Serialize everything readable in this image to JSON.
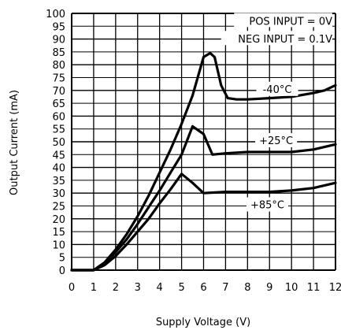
{
  "chart_data": {
    "type": "line",
    "xlabel": "Supply Voltage (V)",
    "ylabel": "Output Current (mA)",
    "xlim": [
      0,
      12
    ],
    "ylim": [
      0,
      100
    ],
    "x_ticks": [
      "0",
      "1",
      "2",
      "3",
      "4",
      "5",
      "6",
      "7",
      "8",
      "9",
      "10",
      "11",
      "12"
    ],
    "y_ticks": [
      "0",
      "5",
      "10",
      "15",
      "20",
      "25",
      "30",
      "35",
      "40",
      "45",
      "50",
      "55",
      "60",
      "65",
      "70",
      "75",
      "80",
      "85",
      "90",
      "95",
      "100"
    ],
    "grid": "major",
    "annotations": [
      "POS INPUT = 0V",
      "NEG INPUT = 0.1V"
    ],
    "series": [
      {
        "name": "-40°C",
        "points": [
          [
            0,
            0
          ],
          [
            1,
            0
          ],
          [
            1.5,
            3
          ],
          [
            2,
            8
          ],
          [
            2.5,
            14
          ],
          [
            3,
            21
          ],
          [
            3.5,
            29
          ],
          [
            4,
            38
          ],
          [
            4.5,
            47
          ],
          [
            5,
            57
          ],
          [
            5.5,
            68
          ],
          [
            6,
            83
          ],
          [
            6.3,
            84.5
          ],
          [
            6.5,
            83
          ],
          [
            6.8,
            72
          ],
          [
            7.1,
            67
          ],
          [
            7.5,
            66.5
          ],
          [
            8,
            66.5
          ],
          [
            9,
            67
          ],
          [
            10,
            67.5
          ],
          [
            11,
            69
          ],
          [
            11.5,
            70
          ],
          [
            12,
            72
          ]
        ]
      },
      {
        "name": "+25°C",
        "points": [
          [
            0,
            0
          ],
          [
            1,
            0
          ],
          [
            1.5,
            2.5
          ],
          [
            2,
            7
          ],
          [
            2.5,
            12
          ],
          [
            3,
            18
          ],
          [
            3.5,
            24.5
          ],
          [
            4,
            31
          ],
          [
            4.5,
            38
          ],
          [
            5,
            45
          ],
          [
            5.5,
            56
          ],
          [
            6,
            53
          ],
          [
            6.4,
            45
          ],
          [
            7,
            45.5
          ],
          [
            8,
            46
          ],
          [
            9,
            46
          ],
          [
            10,
            46
          ],
          [
            11,
            47
          ],
          [
            12,
            49
          ]
        ]
      },
      {
        "name": "+85°C",
        "points": [
          [
            0,
            0
          ],
          [
            1,
            0
          ],
          [
            1.5,
            2
          ],
          [
            2,
            5.5
          ],
          [
            2.5,
            10
          ],
          [
            3,
            15
          ],
          [
            3.5,
            20
          ],
          [
            4,
            26
          ],
          [
            4.5,
            31.5
          ],
          [
            5,
            37.5
          ],
          [
            5.5,
            34
          ],
          [
            6,
            30
          ],
          [
            7,
            30.5
          ],
          [
            8,
            30.5
          ],
          [
            9,
            30.5
          ],
          [
            10,
            31
          ],
          [
            11,
            32
          ],
          [
            12,
            34
          ]
        ]
      }
    ]
  }
}
